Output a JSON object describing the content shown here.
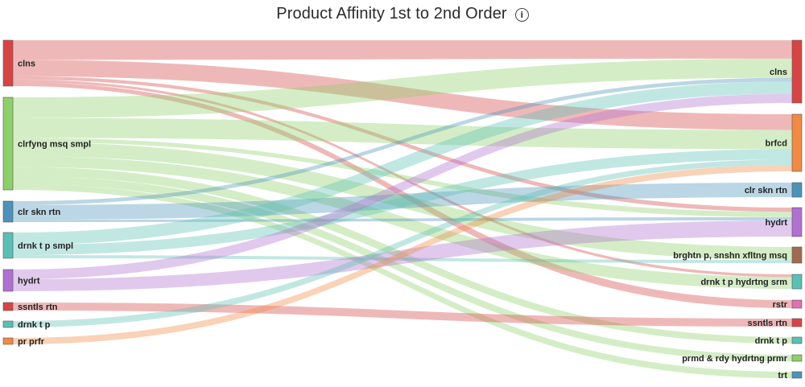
{
  "title": "Product Affinity 1st to 2nd Order",
  "info_icon": "info-icon",
  "chart_data": {
    "type": "sankey",
    "title": "Product Affinity 1st to 2nd Order",
    "sources": [
      {
        "id": "s_clns",
        "label": "clns",
        "color": "#d64545"
      },
      {
        "id": "s_clrfyng",
        "label": "clrfyng msq smpl",
        "color": "#8fcf6a"
      },
      {
        "id": "s_clrskn",
        "label": "clr skn rtn",
        "color": "#4d92b8"
      },
      {
        "id": "s_drnkt_smpl",
        "label": "drnk t p smpl",
        "color": "#5bbfb5"
      },
      {
        "id": "s_hydrt",
        "label": "hydrt",
        "color": "#b070d0"
      },
      {
        "id": "s_ssntls",
        "label": "ssntls rtn",
        "color": "#d64545"
      },
      {
        "id": "s_drnkt",
        "label": "drnk t p",
        "color": "#5bbfb5"
      },
      {
        "id": "s_prprfr",
        "label": "pr prfr",
        "color": "#f08a45"
      }
    ],
    "targets": [
      {
        "id": "t_clns",
        "label": "clns",
        "color": "#d64545"
      },
      {
        "id": "t_brfcd",
        "label": "brfcd",
        "color": "#f08a45"
      },
      {
        "id": "t_clrskn",
        "label": "clr skn rtn",
        "color": "#4d92b8"
      },
      {
        "id": "t_hydrt",
        "label": "hydrt",
        "color": "#b070d0"
      },
      {
        "id": "t_brghtn",
        "label": "brghtn p, snshn xfltng msq",
        "color": "#a06a50"
      },
      {
        "id": "t_drnkt_hyd",
        "label": "drnk t p hydrtng srm",
        "color": "#5bbfb5"
      },
      {
        "id": "t_rstr",
        "label": "rstr",
        "color": "#e070b0"
      },
      {
        "id": "t_ssntls",
        "label": "ssntls rtn",
        "color": "#d64545"
      },
      {
        "id": "t_drnkt",
        "label": "drnk t p",
        "color": "#5bbfb5"
      },
      {
        "id": "t_prmd",
        "label": "prmd & rdy hydrtng prmr",
        "color": "#8fcf6a"
      },
      {
        "id": "t_trt",
        "label": "trt",
        "color": "#4d92b8"
      }
    ],
    "links": [
      {
        "source": "s_clns",
        "target": "t_clns",
        "value": 24
      },
      {
        "source": "s_clns",
        "target": "t_brfcd",
        "value": 20
      },
      {
        "source": "s_clns",
        "target": "t_hydrt",
        "value": 4
      },
      {
        "source": "s_clns",
        "target": "t_rstr",
        "value": 5
      },
      {
        "source": "s_clns",
        "target": "t_drnkt_hyd",
        "value": 3
      },
      {
        "source": "s_clrfyng",
        "target": "t_clns",
        "value": 25
      },
      {
        "source": "s_clrfyng",
        "target": "t_brfcd",
        "value": 24
      },
      {
        "source": "s_clrfyng",
        "target": "t_hydrt",
        "value": 5
      },
      {
        "source": "s_clrfyng",
        "target": "t_brghtn",
        "value": 17
      },
      {
        "source": "s_clrfyng",
        "target": "t_drnkt_hyd",
        "value": 13
      },
      {
        "source": "s_clrfyng",
        "target": "t_drnkt",
        "value": 11
      },
      {
        "source": "s_clrfyng",
        "target": "t_prmd",
        "value": 10
      },
      {
        "source": "s_clrfyng",
        "target": "t_trt",
        "value": 7
      },
      {
        "source": "s_clrskn",
        "target": "t_clns",
        "value": 5
      },
      {
        "source": "s_clrskn",
        "target": "t_clrskn",
        "value": 19
      },
      {
        "source": "s_clrskn",
        "target": "t_hydrt",
        "value": 3
      },
      {
        "source": "s_drnkt_smpl",
        "target": "t_clns",
        "value": 16
      },
      {
        "source": "s_drnkt_smpl",
        "target": "t_brfcd",
        "value": 13
      },
      {
        "source": "s_drnkt_smpl",
        "target": "t_brghtn",
        "value": 4
      },
      {
        "source": "s_hydrt",
        "target": "t_clns",
        "value": 12
      },
      {
        "source": "s_hydrt",
        "target": "t_hydrt",
        "value": 15
      },
      {
        "source": "s_ssntls",
        "target": "t_ssntls",
        "value": 10
      },
      {
        "source": "s_drnkt",
        "target": "t_brfcd",
        "value": 7
      },
      {
        "source": "s_prprfr",
        "target": "t_brfcd",
        "value": 8
      }
    ]
  }
}
